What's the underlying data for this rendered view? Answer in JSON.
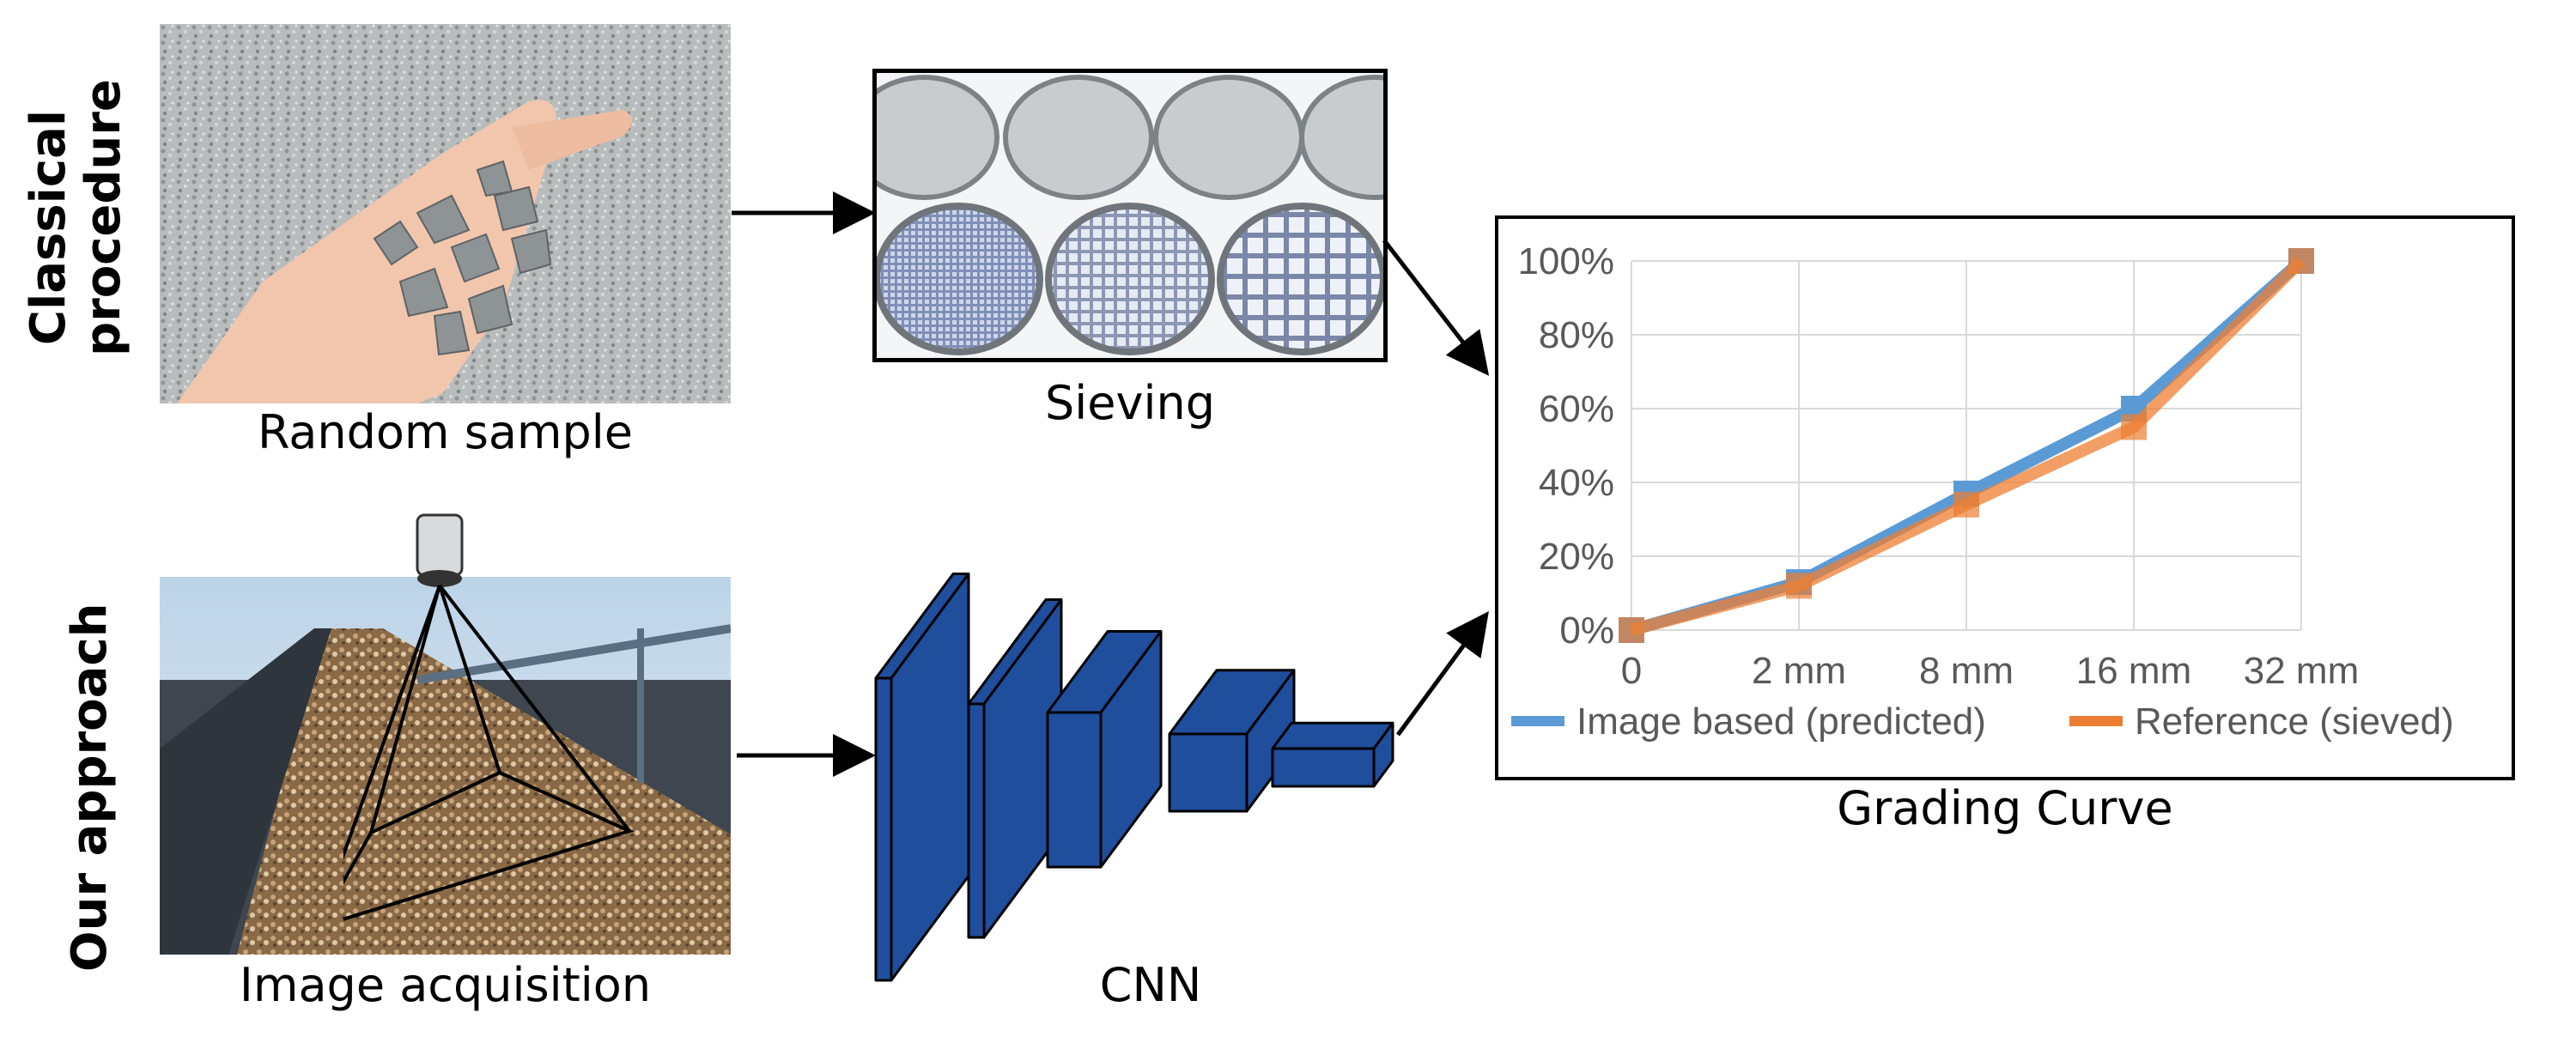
{
  "rows": {
    "classical_line1": "Classical",
    "classical_line2": "procedure",
    "our_approach": "Our approach"
  },
  "captions": {
    "random_sample": "Random sample",
    "sieving": "Sieving",
    "image_acquisition": "Image acquisition",
    "cnn": "CNN",
    "grading_curve": "Grading Curve"
  },
  "colors": {
    "cnn_block": "#1f4e9c",
    "predicted": "#5b9bd5",
    "reference": "#ed7d31"
  },
  "chart_data": {
    "type": "line",
    "title": "",
    "xlabel": "",
    "ylabel": "",
    "categories": [
      "0",
      "2 mm",
      "8 mm",
      "16 mm",
      "32 mm"
    ],
    "y_ticks": [
      "0%",
      "20%",
      "40%",
      "60%",
      "80%",
      "100%"
    ],
    "ylim": [
      0,
      100
    ],
    "grid": true,
    "legend_position": "bottom",
    "series": [
      {
        "name": "Image based (predicted)",
        "color": "#5b9bd5",
        "values": [
          0,
          13,
          37,
          60,
          100
        ]
      },
      {
        "name": "Reference (sieved)",
        "color": "#ed7d31",
        "values": [
          0,
          12,
          34,
          55,
          100
        ]
      }
    ]
  }
}
